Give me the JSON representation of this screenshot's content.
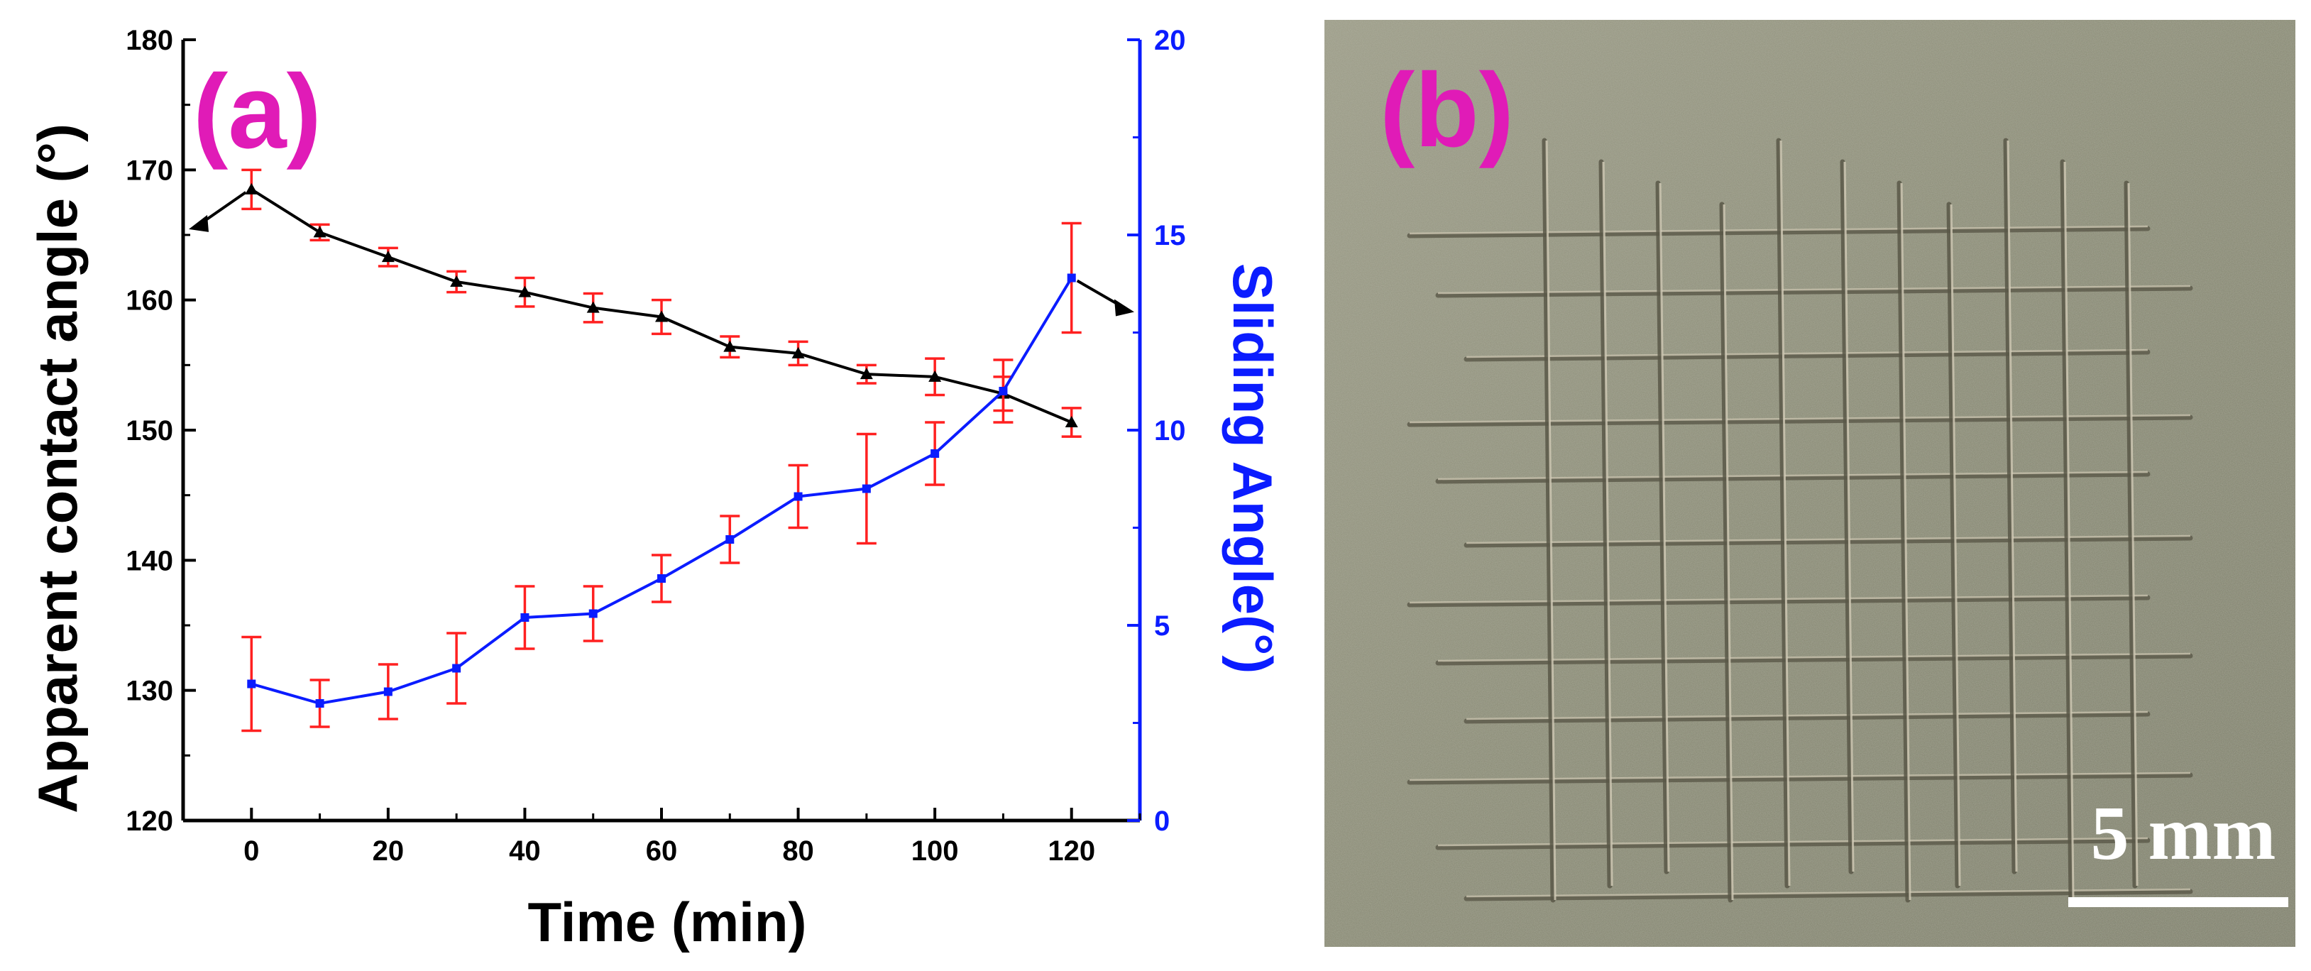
{
  "panel_a": {
    "label": "(a)",
    "colors": {
      "label": "#e01bb7",
      "contact": "#000000",
      "sliding": "#0b1cff",
      "error": "#ff2020"
    }
  },
  "panel_b": {
    "label": "(b)",
    "scale_bar_label": "5 mm",
    "colors": {
      "label": "#e01bb7",
      "scale": "#ffffff",
      "surface": "#8b8c78"
    }
  },
  "chart_data": {
    "type": "line",
    "title": "",
    "xlabel": "Time (min)",
    "ylabel_left": "Apparent contact angle (°)",
    "ylabel_right": "Sliding Angle(°)",
    "xlim": [
      -10,
      130
    ],
    "ylim_left": [
      120,
      180
    ],
    "ylim_right": [
      0,
      20
    ],
    "x_ticks": [
      0,
      20,
      40,
      60,
      80,
      100,
      120
    ],
    "y_ticks_left": [
      120,
      130,
      140,
      150,
      160,
      170,
      180
    ],
    "y_ticks_right": [
      0,
      5,
      10,
      15,
      20
    ],
    "x": [
      0,
      10,
      20,
      30,
      40,
      50,
      60,
      70,
      80,
      90,
      100,
      110,
      120
    ],
    "series": [
      {
        "name": "Apparent contact angle",
        "axis": "left",
        "marker": "triangle",
        "values": [
          168.5,
          165.2,
          163.3,
          161.4,
          160.6,
          159.4,
          158.7,
          156.4,
          155.9,
          154.3,
          154.1,
          152.8,
          150.6
        ],
        "errors": [
          1.5,
          0.6,
          0.7,
          0.8,
          1.1,
          1.1,
          1.3,
          0.8,
          0.9,
          0.7,
          1.4,
          1.3,
          1.1
        ]
      },
      {
        "name": "Sliding Angle",
        "axis": "right",
        "marker": "square",
        "values": [
          3.5,
          3.0,
          3.3,
          3.9,
          5.2,
          5.3,
          6.2,
          7.2,
          8.3,
          8.5,
          9.4,
          11.0,
          13.9
        ],
        "errors": [
          1.2,
          0.6,
          0.7,
          0.9,
          0.8,
          0.7,
          0.6,
          0.6,
          0.8,
          1.4,
          0.8,
          0.8,
          1.4
        ]
      }
    ]
  }
}
